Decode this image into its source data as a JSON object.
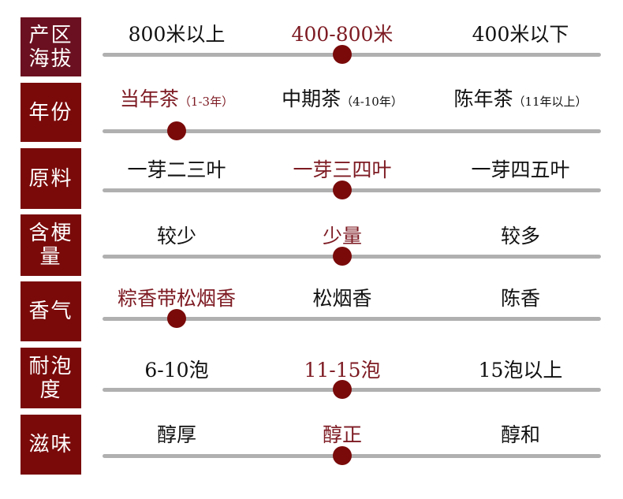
{
  "colors": {
    "accent": "#7a0a0a",
    "track": "#b0b0b0",
    "selected_text": "#7d1a22"
  },
  "rows": [
    {
      "label": "产区海拔",
      "options": [
        {
          "text": "800米以上",
          "note": ""
        },
        {
          "text": "400-800米",
          "note": ""
        },
        {
          "text": "400米以下",
          "note": ""
        }
      ],
      "selected": 1
    },
    {
      "label": "年份",
      "options": [
        {
          "text": "当年茶",
          "note": "（1-3年）"
        },
        {
          "text": "中期茶",
          "note": "（4-10年）"
        },
        {
          "text": "陈年茶",
          "note": "（11年以上）"
        }
      ],
      "selected": 0
    },
    {
      "label": "原料",
      "options": [
        {
          "text": "一芽二三叶",
          "note": ""
        },
        {
          "text": "一芽三四叶",
          "note": ""
        },
        {
          "text": "一芽四五叶",
          "note": ""
        }
      ],
      "selected": 1
    },
    {
      "label": "含梗量",
      "options": [
        {
          "text": "较少",
          "note": ""
        },
        {
          "text": "少量",
          "note": ""
        },
        {
          "text": "较多",
          "note": ""
        }
      ],
      "selected": 1
    },
    {
      "label": "香气",
      "options": [
        {
          "text": "粽香带松烟香",
          "note": ""
        },
        {
          "text": "松烟香",
          "note": ""
        },
        {
          "text": "陈香",
          "note": ""
        }
      ],
      "selected": 0
    },
    {
      "label": "耐泡度",
      "options": [
        {
          "text": "6-10泡",
          "note": ""
        },
        {
          "text": "11-15泡",
          "note": ""
        },
        {
          "text": "15泡以上",
          "note": ""
        }
      ],
      "selected": 1
    },
    {
      "label": "滋味",
      "options": [
        {
          "text": "醇厚",
          "note": ""
        },
        {
          "text": "醇正",
          "note": ""
        },
        {
          "text": "醇和",
          "note": ""
        }
      ],
      "selected": 1
    }
  ]
}
